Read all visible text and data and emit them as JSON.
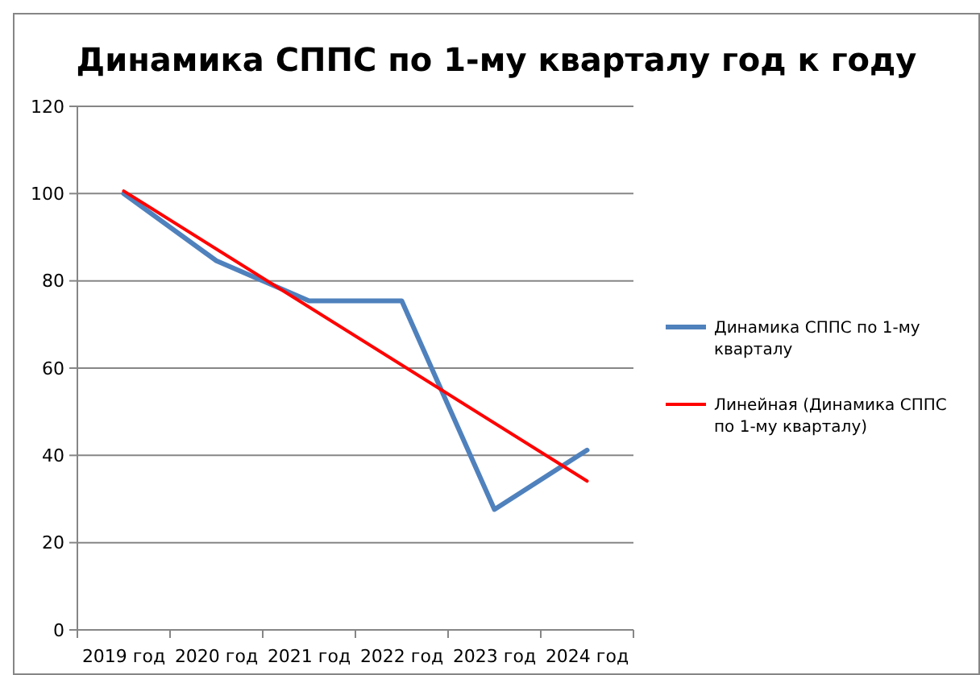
{
  "chart_data": {
    "type": "line",
    "title": "Динамика СППС по 1-му кварталу год к году",
    "categories": [
      "2019 год",
      "2020 год",
      "2021 год",
      "2022 год",
      "2023 год",
      "2024 год"
    ],
    "series": [
      {
        "name": "Динамика СППС по 1-му кварталу",
        "color": "#4f81bd",
        "values": [
          100,
          84.6,
          75.4,
          75.4,
          27.6,
          41.2
        ]
      },
      {
        "name": "Линейная (Динамика СППС по 1-му кварталу)",
        "color": "#ff0000",
        "x": [
          "2019 год",
          "2024 год"
        ],
        "values": [
          100.6,
          34.1
        ]
      }
    ],
    "ylim": [
      0,
      120
    ],
    "yticks": [
      0,
      20,
      40,
      60,
      80,
      100,
      120
    ],
    "grid": "y",
    "legend": "right",
    "marker": "none",
    "line_style": "solid"
  }
}
